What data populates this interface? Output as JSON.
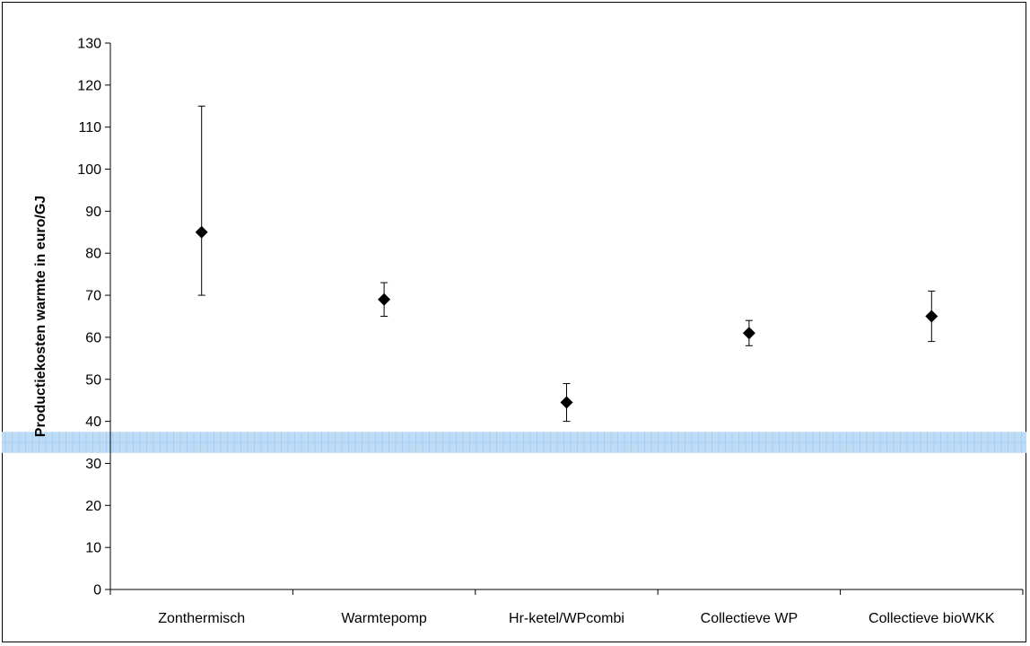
{
  "chart_data": {
    "type": "scatter",
    "ylabel": "Productiekosten warmte in euro/GJ",
    "xlabel": "",
    "ylim": [
      0,
      130
    ],
    "ytick_step": 10,
    "categories": [
      "Zonthermisch",
      "Warmtepomp",
      "Hr-ketel/WPcombi",
      "Collectieve WP",
      "Collectieve bioWKK"
    ],
    "series": [
      {
        "values": [
          85,
          69,
          44.5,
          61,
          65
        ],
        "error_low": [
          70,
          65,
          40,
          58,
          59
        ],
        "error_high": [
          115,
          73,
          49,
          64,
          71
        ],
        "marker": "diamond",
        "color": "#000000"
      }
    ],
    "reference_band": {
      "y_low": 32.5,
      "y_high": 37.5,
      "color": "#bfdcf7",
      "grid_color": "#a9cdf0"
    },
    "grid": false,
    "legend": "none"
  }
}
